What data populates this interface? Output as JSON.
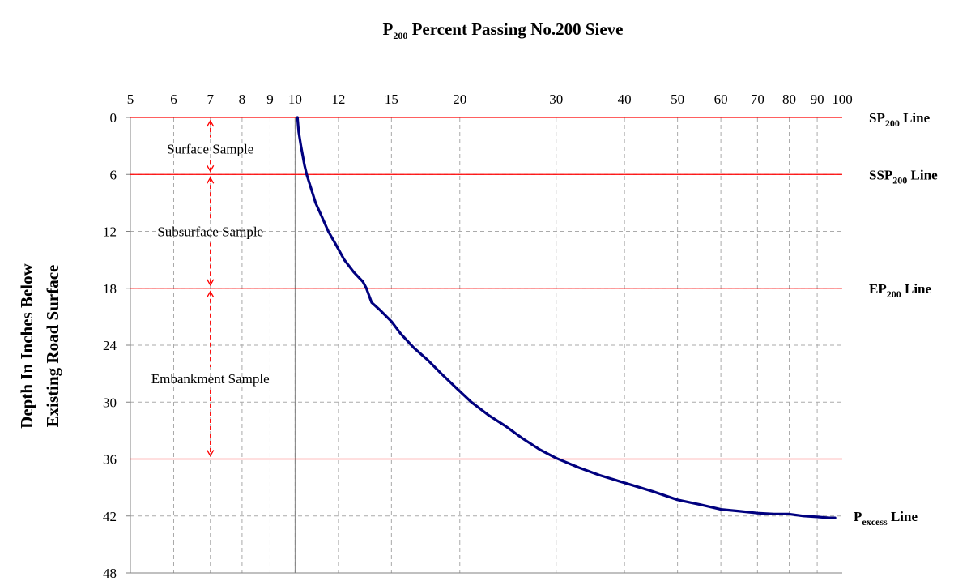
{
  "chart_data": {
    "type": "line",
    "title": {
      "main": "P",
      "sub": "200",
      "rest": " Percent Passing No.200 Sieve"
    },
    "ylabel_lines": [
      "Depth In Inches Below",
      "Existing Road Surface"
    ],
    "x_scale": "log",
    "xlim": [
      5,
      100
    ],
    "x_ticks": [
      5,
      6,
      7,
      8,
      9,
      10,
      12,
      15,
      20,
      30,
      40,
      50,
      60,
      70,
      80,
      90,
      100
    ],
    "ylim": [
      0,
      48
    ],
    "y_inverted": true,
    "y_ticks": [
      0,
      6,
      12,
      18,
      24,
      30,
      36,
      42,
      48
    ],
    "grid": true,
    "colors": {
      "curve": "#00007f",
      "ref_lines": "#ff0000",
      "grid": "#aaaaaa",
      "arrows": "#ff0000"
    },
    "vertical_marker_x": 10,
    "ref_lines": [
      {
        "depth": 0,
        "main": "SP",
        "sub": "200",
        "rest": " Line"
      },
      {
        "depth": 6,
        "main": "SSP",
        "sub": "200",
        "rest": " Line"
      },
      {
        "depth": 18,
        "main": "EP",
        "sub": "200",
        "rest": " Line"
      },
      {
        "depth": 36,
        "main": "",
        "sub": "",
        "rest": ""
      },
      {
        "depth": 42,
        "main": "P",
        "sub": "excess",
        "rest": " Line"
      }
    ],
    "zones": [
      {
        "label": "Surface Sample",
        "from": 0,
        "to": 6,
        "label_depth": 3.3
      },
      {
        "label": "Subsurface Sample",
        "from": 6,
        "to": 18,
        "label_depth": 12
      },
      {
        "label": "Embankment Sample",
        "from": 18,
        "to": 36,
        "label_depth": 27.5
      }
    ],
    "zone_arrow_x": 7,
    "series": [
      {
        "x": [
          10.1,
          10.15,
          10.25,
          10.4,
          10.5,
          10.7,
          10.9,
          11.2,
          11.5,
          11.9,
          12.3,
          12.8,
          13.3,
          13.5,
          13.8,
          14.3,
          15.0,
          15.6,
          16.5,
          17.5,
          18.5,
          19.7,
          21.0,
          22.6,
          24.2,
          26.0,
          28.0,
          30.0,
          33.0,
          36.0,
          40.0,
          45.0,
          50.0,
          55.0,
          60.0,
          65.0,
          70.0,
          75.0,
          80.0,
          85.0,
          90.0,
          95.0,
          97.0
        ],
        "y": [
          0,
          1.5,
          3,
          5,
          6,
          7.5,
          9,
          10.5,
          12,
          13.5,
          15,
          16.3,
          17.3,
          18,
          19.5,
          20.3,
          21.5,
          22.8,
          24.3,
          25.6,
          27,
          28.5,
          30,
          31.4,
          32.5,
          33.8,
          35,
          35.9,
          36.9,
          37.7,
          38.5,
          39.4,
          40.3,
          40.8,
          41.3,
          41.5,
          41.7,
          41.8,
          41.8,
          42.0,
          42.1,
          42.2,
          42.2
        ]
      }
    ]
  }
}
